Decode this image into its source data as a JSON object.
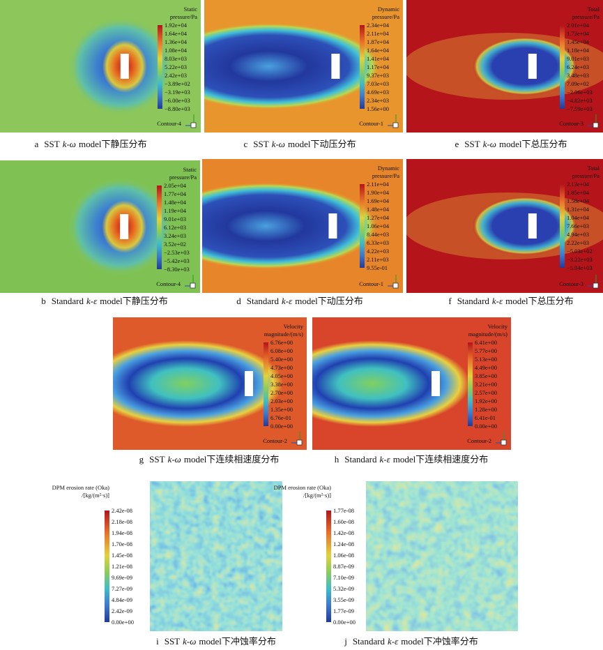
{
  "panels": [
    {
      "caption": {
        "letter": "a",
        "model": "SST",
        "turb": "k-ω",
        "rest": "model下静压分布"
      },
      "legend": {
        "title": [
          "Static",
          "pressure/Pa"
        ],
        "ticks": [
          "1.92e+04",
          "1.64e+04",
          "1.36e+04",
          "1.08e+04",
          "8.03e+03",
          "5.22e+03",
          "2.42e+03",
          "−3.89e+02",
          "−3.19e+03",
          "−6.00e+03",
          "−8.80e+03"
        ]
      },
      "contour": "Contour-4"
    },
    {
      "caption": {
        "letter": "b",
        "model": "Standard",
        "turb": "k-ε",
        "rest": "model下静压分布"
      },
      "legend": {
        "title": [
          "Static",
          "pressure/Pa"
        ],
        "ticks": [
          "2.05e+04",
          "1.77e+04",
          "1.48e+04",
          "1.19e+04",
          "9.01e+03",
          "6.12e+03",
          "3.24e+03",
          "3.52e+02",
          "−2.53e+03",
          "−5.42e+03",
          "−8.30e+03"
        ]
      },
      "contour": "Contour-4"
    },
    {
      "caption": {
        "letter": "c",
        "model": "SST",
        "turb": "k-ω",
        "rest": "model下动压分布"
      },
      "legend": {
        "title": [
          "Dynamic",
          "pressure/Pa"
        ],
        "ticks": [
          "2.34e+04",
          "2.11e+04",
          "1.87e+04",
          "1.64e+04",
          "1.41e+04",
          "1.17e+04",
          "9.37e+03",
          "7.03e+03",
          "4.69e+03",
          "2.34e+03",
          "1.56e+00"
        ]
      },
      "contour": "Contour-1"
    },
    {
      "caption": {
        "letter": "d",
        "model": "Standard",
        "turb": "k-ε",
        "rest": "model下动压分布"
      },
      "legend": {
        "title": [
          "Dynamic",
          "pressure/Pa"
        ],
        "ticks": [
          "2.11e+04",
          "1.90e+04",
          "1.69e+04",
          "1.48e+04",
          "1.27e+04",
          "1.06e+04",
          "8.44e+03",
          "6.33e+03",
          "4.22e+03",
          "2.11e+03",
          "9.55e-01"
        ]
      },
      "contour": "Contour-1"
    },
    {
      "caption": {
        "letter": "e",
        "model": "SST",
        "turb": "k-ω",
        "rest": "model下总压分布"
      },
      "legend": {
        "title": [
          "Total",
          "pressure/Pa"
        ],
        "ticks": [
          "2.01e+04",
          "1.73e+04",
          "1.45e+04",
          "1.18e+04",
          "9.01e+03",
          "6.24e+03",
          "3.48e+03",
          "7.09e+02",
          "−2.06e+03",
          "−4.82e+03",
          "−7.59e+03"
        ]
      },
      "contour": "Contour-3"
    },
    {
      "caption": {
        "letter": "f",
        "model": "Standard",
        "turb": "k-ε",
        "rest": "model下总压分布"
      },
      "legend": {
        "title": [
          "Total",
          "pressure/Pa"
        ],
        "ticks": [
          "2.13e+04",
          "1.85e+04",
          "1.58e+04",
          "1.31e+04",
          "1.04e+04",
          "7.66e+03",
          "4.94e+03",
          "2.22e+03",
          "−5.03e+02",
          "−3.22e+03",
          "−5.94e+03"
        ]
      },
      "contour": "Contour-3"
    },
    {
      "caption": {
        "letter": "g",
        "model": "SST",
        "turb": "k-ω",
        "rest": "model下连续相速度分布"
      },
      "legend": {
        "title": [
          "Velocity",
          "magnitude/(m/s)"
        ],
        "ticks": [
          "6.76e+00",
          "6.08e+00",
          "5.40e+00",
          "4.73e+00",
          "4.05e+00",
          "3.38e+00",
          "2.70e+00",
          "2.03e+00",
          "1.35e+00",
          "6.76e-01",
          "0.00e+00"
        ]
      },
      "contour": "Contour-2"
    },
    {
      "caption": {
        "letter": "h",
        "model": "Standard",
        "turb": "k-ε",
        "rest": "model下连续相速度分布"
      },
      "legend": {
        "title": [
          "Velocity",
          "magnitude/(m/s)"
        ],
        "ticks": [
          "6.41e+00",
          "5.77e+00",
          "5.13e+00",
          "4.49e+00",
          "3.85e+00",
          "3.21e+00",
          "2.57e+00",
          "1.92e+00",
          "1.28e+00",
          "6.41e-01",
          "0.00e+00"
        ]
      },
      "contour": "Contour-2"
    },
    {
      "caption": {
        "letter": "i",
        "model": "SST",
        "turb": "k-ω",
        "rest": "model下冲蚀率分布"
      },
      "legend": {
        "title": [
          "DPM erosion rate (Oka)",
          "/[kg/(m²·s)]"
        ],
        "ticks": [
          "2.42e-08",
          "2.18e-08",
          "1.94e-08",
          "1.70e-08",
          "1.45e-08",
          "1.21e-08",
          "9.69e-09",
          "7.27e-09",
          "4.84e-09",
          "2.42e-09",
          "0.00e+00"
        ]
      }
    },
    {
      "caption": {
        "letter": "j",
        "model": "Standard",
        "turb": "k-ε",
        "rest": "model下冲蚀率分布"
      },
      "legend": {
        "title": [
          "DPM erosion rate (Oka)",
          "/[kg/(m²·s)]"
        ],
        "ticks": [
          "1.77e-08",
          "1.60e-08",
          "1.42e-08",
          "1.24e-08",
          "1.06e-08",
          "8.87e-09",
          "7.10e-09",
          "5.32e-09",
          "3.55e-09",
          "1.77e-09",
          "0.00e+00"
        ]
      }
    }
  ]
}
